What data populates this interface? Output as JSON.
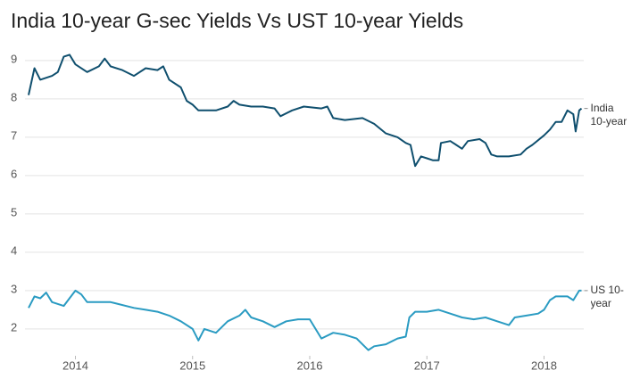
{
  "chart_data": {
    "type": "line",
    "title": "India 10-year G-sec Yields Vs UST 10-year Yields",
    "xlim": [
      2013.6,
      2018.4
    ],
    "xticks": [
      2014,
      2015,
      2016,
      2017,
      2018
    ],
    "ylim": [
      1.3,
      9.3
    ],
    "yticks": [
      2,
      3,
      4,
      5,
      6,
      7,
      8,
      9
    ],
    "grid": true,
    "series": [
      {
        "name": "India 10-year",
        "color": "#0f4f6e",
        "x": [
          2013.6,
          2013.65,
          2013.7,
          2013.8,
          2013.85,
          2013.9,
          2013.95,
          2014.0,
          2014.1,
          2014.2,
          2014.25,
          2014.3,
          2014.4,
          2014.5,
          2014.6,
          2014.7,
          2014.75,
          2014.8,
          2014.9,
          2014.95,
          2015.0,
          2015.05,
          2015.2,
          2015.3,
          2015.35,
          2015.4,
          2015.5,
          2015.6,
          2015.7,
          2015.75,
          2015.85,
          2015.95,
          2016.1,
          2016.15,
          2016.2,
          2016.3,
          2016.45,
          2016.55,
          2016.65,
          2016.75,
          2016.82,
          2016.86,
          2016.9,
          2016.95,
          2017.0,
          2017.05,
          2017.1,
          2017.12,
          2017.2,
          2017.25,
          2017.3,
          2017.35,
          2017.45,
          2017.5,
          2017.55,
          2017.6,
          2017.7,
          2017.8,
          2017.85,
          2017.9,
          2018.0,
          2018.05,
          2018.1,
          2018.15,
          2018.2,
          2018.25,
          2018.27,
          2018.3,
          2018.32
        ],
        "values": [
          8.1,
          8.8,
          8.5,
          8.6,
          8.7,
          9.1,
          9.15,
          8.9,
          8.7,
          8.85,
          9.05,
          8.85,
          8.75,
          8.6,
          8.8,
          8.75,
          8.85,
          8.5,
          8.3,
          7.95,
          7.85,
          7.7,
          7.7,
          7.8,
          7.95,
          7.85,
          7.8,
          7.8,
          7.75,
          7.55,
          7.7,
          7.8,
          7.75,
          7.8,
          7.5,
          7.45,
          7.5,
          7.35,
          7.1,
          7.0,
          6.85,
          6.8,
          6.25,
          6.5,
          6.45,
          6.4,
          6.4,
          6.85,
          6.9,
          6.8,
          6.7,
          6.9,
          6.95,
          6.85,
          6.55,
          6.5,
          6.5,
          6.55,
          6.7,
          6.8,
          7.05,
          7.2,
          7.4,
          7.4,
          7.7,
          7.6,
          7.15,
          7.7,
          7.75
        ]
      },
      {
        "name": "US 10-year",
        "color": "#2a9bc2",
        "x": [
          2013.6,
          2013.65,
          2013.7,
          2013.75,
          2013.8,
          2013.9,
          2013.95,
          2014.0,
          2014.05,
          2014.1,
          2014.3,
          2014.5,
          2014.6,
          2014.7,
          2014.8,
          2014.9,
          2015.0,
          2015.05,
          2015.1,
          2015.2,
          2015.3,
          2015.4,
          2015.45,
          2015.5,
          2015.6,
          2015.7,
          2015.8,
          2015.9,
          2016.0,
          2016.1,
          2016.2,
          2016.3,
          2016.4,
          2016.5,
          2016.55,
          2016.65,
          2016.75,
          2016.82,
          2016.85,
          2016.9,
          2017.0,
          2017.1,
          2017.2,
          2017.3,
          2017.4,
          2017.5,
          2017.6,
          2017.7,
          2017.75,
          2017.85,
          2017.95,
          2018.0,
          2018.05,
          2018.1,
          2018.2,
          2018.25,
          2018.3,
          2018.32
        ],
        "values": [
          2.55,
          2.85,
          2.8,
          2.95,
          2.7,
          2.6,
          2.8,
          3.0,
          2.9,
          2.7,
          2.7,
          2.55,
          2.5,
          2.45,
          2.35,
          2.2,
          2.0,
          1.7,
          2.0,
          1.9,
          2.2,
          2.35,
          2.5,
          2.3,
          2.2,
          2.05,
          2.2,
          2.25,
          2.25,
          1.75,
          1.9,
          1.85,
          1.75,
          1.45,
          1.55,
          1.6,
          1.75,
          1.8,
          2.3,
          2.45,
          2.45,
          2.5,
          2.4,
          2.3,
          2.25,
          2.3,
          2.2,
          2.1,
          2.3,
          2.35,
          2.4,
          2.5,
          2.75,
          2.85,
          2.85,
          2.75,
          3.0,
          3.0
        ]
      }
    ]
  }
}
